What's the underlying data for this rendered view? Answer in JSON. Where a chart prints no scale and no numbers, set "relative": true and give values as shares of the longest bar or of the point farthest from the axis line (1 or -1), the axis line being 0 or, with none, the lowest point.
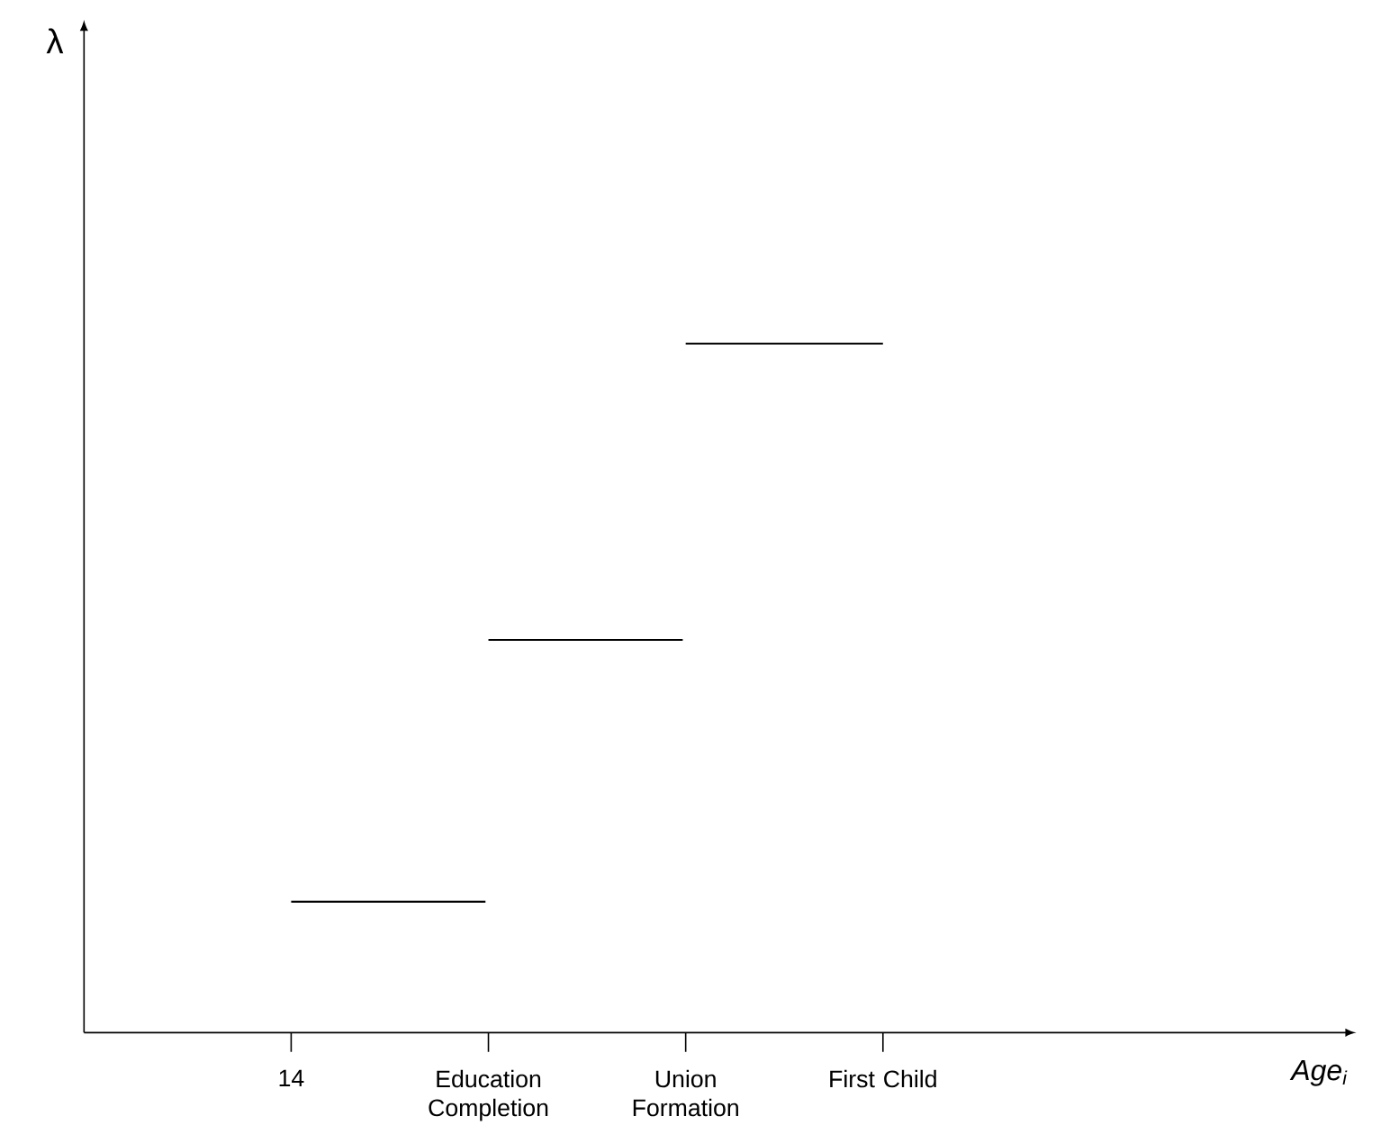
{
  "chart_data": {
    "type": "step",
    "relative": true,
    "annotations": [
      "λ",
      "Age$_{i}$"
    ],
    "categories": [
      "14",
      "Education Completion",
      "Union Formation",
      "First Child"
    ],
    "series": [
      {
        "color": "#000000",
        "values": [
          0.19,
          0.57,
          1,
          1
        ]
      }
    ],
    "marker": "none",
    "grid": false
  }
}
